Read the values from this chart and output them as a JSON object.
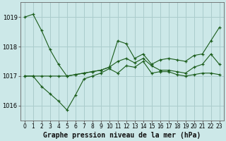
{
  "bg_color": "#cce8e8",
  "grid_color": "#aacccc",
  "line_color": "#1a5c1a",
  "x_values": [
    0,
    1,
    2,
    3,
    4,
    5,
    6,
    7,
    8,
    9,
    10,
    11,
    12,
    13,
    14,
    15,
    16,
    17,
    18,
    19,
    20,
    21,
    22,
    23
  ],
  "series1": [
    1019.0,
    1019.1,
    1018.55,
    1017.9,
    1017.4,
    1017.0,
    1017.05,
    1017.1,
    1017.15,
    1017.2,
    1017.3,
    1018.2,
    1018.1,
    1017.6,
    1017.75,
    1017.4,
    1017.55,
    1017.6,
    1017.55,
    1017.5,
    1017.7,
    1017.75,
    1018.2,
    1018.65
  ],
  "series2": [
    1017.0,
    1017.0,
    1017.0,
    1017.0,
    1017.0,
    1017.0,
    1017.05,
    1017.1,
    1017.15,
    1017.2,
    1017.3,
    1017.5,
    1017.6,
    1017.45,
    1017.6,
    1017.35,
    1017.2,
    1017.2,
    1017.15,
    1017.1,
    1017.3,
    1017.4,
    1017.75,
    1017.4
  ],
  "series3": [
    1017.0,
    1017.0,
    1016.65,
    1016.4,
    1016.15,
    1015.85,
    1016.35,
    1016.9,
    1017.0,
    1017.1,
    1017.25,
    1017.1,
    1017.35,
    1017.3,
    1017.5,
    1017.1,
    1017.15,
    1017.15,
    1017.05,
    1017.0,
    1017.05,
    1017.1,
    1017.1,
    1017.05
  ],
  "ylim_min": 1015.5,
  "ylim_max": 1019.5,
  "yticks": [
    1016,
    1017,
    1018,
    1019
  ],
  "xlabel": "Graphe pression niveau de la mer (hPa)",
  "xlabel_fontsize": 7,
  "tick_fontsize": 6
}
